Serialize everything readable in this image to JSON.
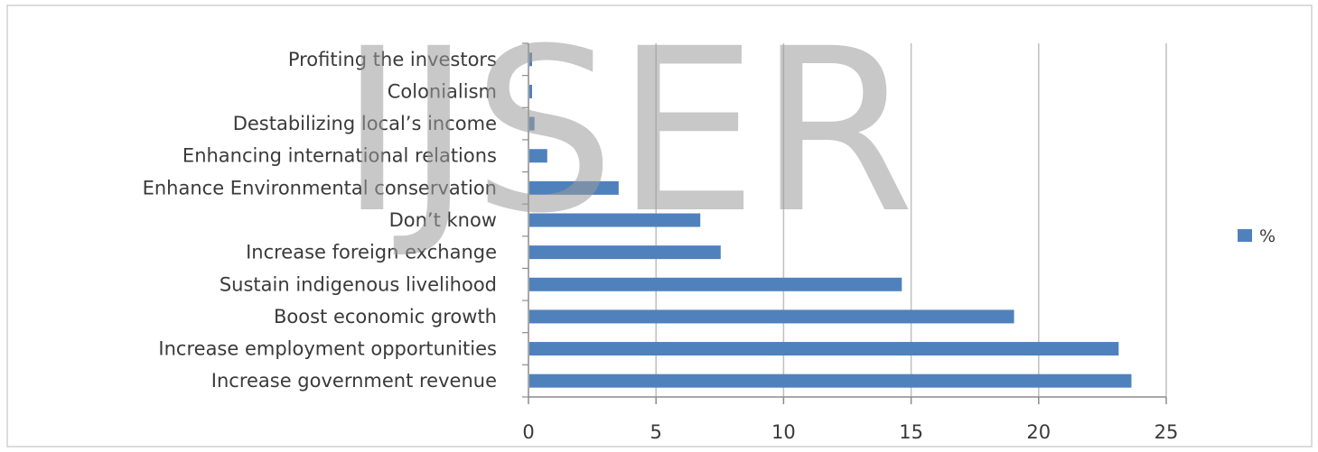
{
  "watermark": "IJSER",
  "chart_data": {
    "type": "bar",
    "orientation": "horizontal",
    "categories": [
      "Increase government revenue",
      "Increase employment opportunities",
      "Boost economic growth",
      "Sustain indigenous livelihood",
      "Increase foreign exchange",
      "Don’t know",
      "Enhance Environmental conservation",
      "Enhancing international relations",
      "Destabilizing local’s income",
      "Colonialism",
      "Profiting the investors"
    ],
    "series": [
      {
        "name": "%",
        "values": [
          23.6,
          23.1,
          19.0,
          14.6,
          7.5,
          6.7,
          3.5,
          0.7,
          0.2,
          0.1,
          0.1
        ]
      }
    ],
    "xlim": [
      0,
      25
    ],
    "xticks": [
      0,
      5,
      10,
      15,
      20,
      25
    ],
    "grid": true,
    "legend": "right",
    "colors": {
      "bar": "#4f81bd",
      "grid": "#bfbfbf",
      "axis": "#8c8c8c",
      "border": "#d0d0d0"
    }
  }
}
